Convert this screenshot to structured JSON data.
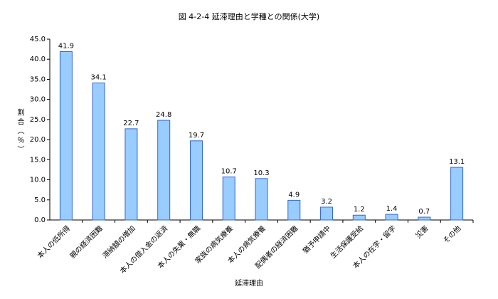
{
  "chart_data": {
    "type": "bar",
    "title": "図 4-2-4 延滞理由と学種との関係(大学)",
    "x_label": "延滞理由",
    "y_label": "割合（％）",
    "categories": [
      "本人の低所得",
      "親の経済困難",
      "滞納額の増加",
      "本人の借入金の返済",
      "本人の失業・無職",
      "家族の病気療養",
      "本人の病気療養",
      "配偶者の経済困難",
      "猶予申請中",
      "生活保護受給",
      "本人の在学・留学",
      "災害",
      "その他"
    ],
    "values": [
      41.9,
      34.1,
      22.7,
      24.8,
      19.7,
      10.7,
      10.3,
      4.9,
      3.2,
      1.2,
      1.4,
      0.7,
      13.1
    ],
    "color": "#99ccff",
    "ylim": [
      0,
      45
    ],
    "yticks": [
      {
        "value": 0,
        "label": "0.0"
      },
      {
        "value": 5,
        "label": "5.0"
      },
      {
        "value": 10,
        "label": "10.0"
      },
      {
        "value": 15,
        "label": "15.0"
      },
      {
        "value": 20,
        "label": "20.0"
      },
      {
        "value": 25,
        "label": "25.0"
      },
      {
        "value": 30,
        "label": "30.0"
      },
      {
        "value": 35,
        "label": "35.0"
      },
      {
        "value": 40,
        "label": "40.0"
      },
      {
        "value": 45,
        "label": "45.0"
      }
    ],
    "grid": false
  }
}
